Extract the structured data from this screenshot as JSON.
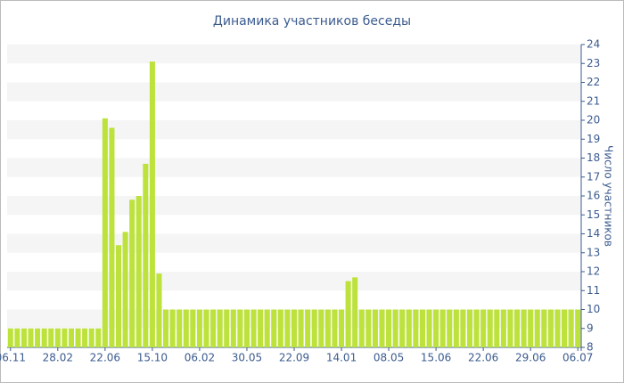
{
  "chart_data": {
    "type": "bar",
    "title": "Динамика участников беседы",
    "y_label": "Число участников",
    "categories": [
      "06.11",
      null,
      null,
      null,
      null,
      null,
      null,
      "28.02",
      null,
      null,
      null,
      null,
      null,
      null,
      "22.06",
      null,
      null,
      null,
      null,
      null,
      null,
      "15.10",
      null,
      null,
      null,
      null,
      null,
      null,
      "06.02",
      null,
      null,
      null,
      null,
      null,
      null,
      "30.05",
      null,
      null,
      null,
      null,
      null,
      null,
      "22.09",
      null,
      null,
      null,
      null,
      null,
      null,
      "14.01",
      null,
      null,
      null,
      null,
      null,
      null,
      "08.05",
      null,
      null,
      null,
      null,
      null,
      null,
      "15.06",
      null,
      null,
      null,
      null,
      null,
      null,
      "22.06",
      null,
      null,
      null,
      null,
      null,
      null,
      "29.06",
      null,
      null,
      null,
      null,
      null,
      null,
      "06.07"
    ],
    "values": [
      9,
      9,
      9,
      9,
      9,
      9,
      9,
      9,
      9,
      9,
      9,
      9,
      9,
      9,
      20.1,
      19.6,
      13.4,
      14.1,
      15.8,
      16.0,
      17.7,
      23.1,
      11.9,
      10,
      10,
      10,
      10,
      10,
      10,
      10,
      10,
      10,
      10,
      10,
      10,
      10,
      10,
      10,
      10,
      10,
      10,
      10,
      10,
      10,
      10,
      10,
      10,
      10,
      10,
      10,
      11.5,
      11.7,
      10,
      10,
      10,
      10,
      10,
      10,
      10,
      10,
      10,
      10,
      10,
      10,
      10,
      10,
      10,
      10,
      10,
      10,
      10,
      10,
      10,
      10,
      10,
      10,
      10,
      10,
      10,
      10,
      10,
      10,
      10,
      10,
      10
    ],
    "color": "#bde23c",
    "ylim": [
      8,
      24
    ],
    "yticks": [
      8,
      9,
      10,
      11,
      12,
      13,
      14,
      15,
      16,
      17,
      18,
      19,
      20,
      21,
      22,
      23,
      24
    ],
    "grid": true
  }
}
